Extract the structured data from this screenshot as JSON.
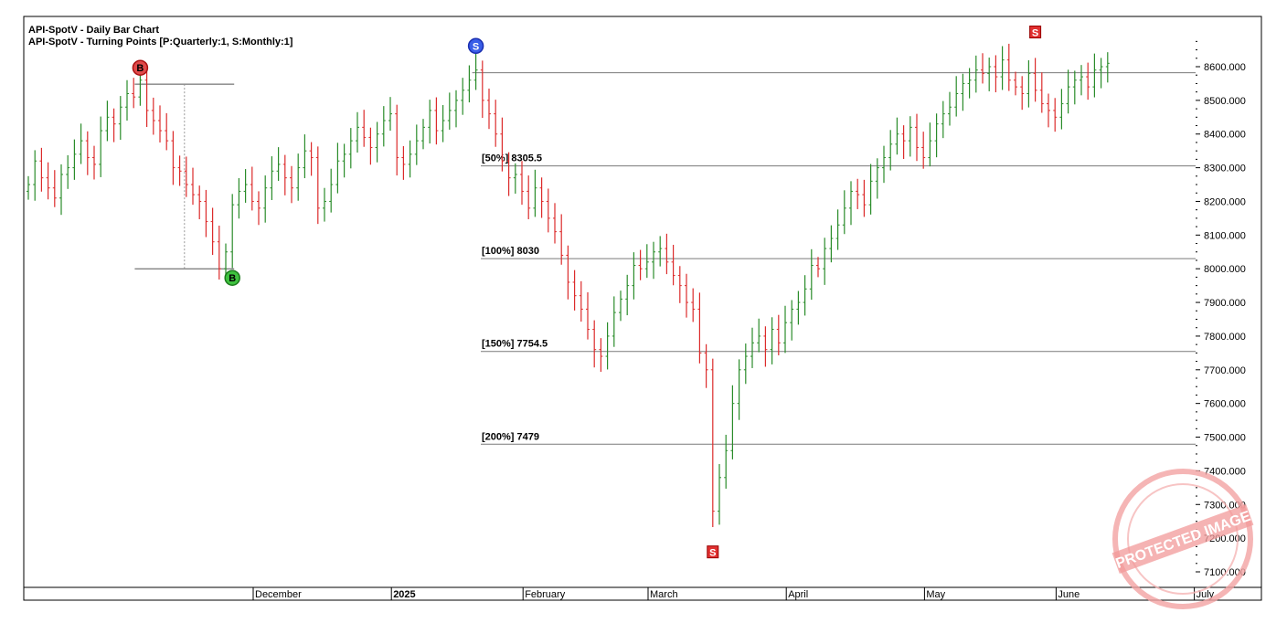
{
  "chart_data": {
    "type": "bar",
    "subtype": "ohlc",
    "title": "API-SpotV - Daily Bar Chart",
    "subtitle": "API-SpotV - Turning Points [P:Quarterly:1, S:Monthly:1]",
    "ylim": [
      7050,
      8700
    ],
    "yticks": [
      "7100.000",
      "7200.000",
      "7300.000",
      "7400.000",
      "7500.000",
      "7600.000",
      "7700.000",
      "7800.000",
      "7900.000",
      "8000.000",
      "8100.000",
      "8200.000",
      "8300.000",
      "8400.000",
      "8500.000",
      "8600.000"
    ],
    "ytick_values": [
      7100,
      7200,
      7300,
      7400,
      7500,
      7600,
      7700,
      7800,
      7900,
      8000,
      8100,
      8200,
      8300,
      8400,
      8500,
      8600
    ],
    "xticks": [
      {
        "label": "December",
        "bold": false,
        "bar": 35
      },
      {
        "label": "2025",
        "bold": true,
        "bar": 56
      },
      {
        "label": "February",
        "bold": false,
        "bar": 76
      },
      {
        "label": "March",
        "bold": false,
        "bar": 95
      },
      {
        "label": "April",
        "bold": false,
        "bar": 116
      },
      {
        "label": "May",
        "bold": false,
        "bar": 137
      },
      {
        "label": "June",
        "bold": false,
        "bar": 157
      },
      {
        "label": "July",
        "bold": false,
        "bar": 178
      }
    ],
    "levels": [
      {
        "label": "[50%] 8305.5",
        "value": 8305.5
      },
      {
        "label": "[100%] 8030",
        "value": 8030
      },
      {
        "label": "[150%] 7754.5",
        "value": 7754.5
      },
      {
        "label": "[200%] 7479",
        "value": 7479
      }
    ],
    "top_line": {
      "value": 8582
    },
    "range_box": {
      "high": 8548,
      "low": 8000,
      "start_bar": 17,
      "end_bar": 31
    },
    "turning_points": [
      {
        "text": "B",
        "bar": 31,
        "value": 8000,
        "pos": "below",
        "style": "circle-green"
      },
      {
        "text": "B",
        "bar": 17,
        "value": 8575,
        "pos": "above",
        "style": "circle-red"
      },
      {
        "text": "S",
        "bar": 68,
        "value": 8640,
        "pos": "above",
        "style": "circle-blue"
      },
      {
        "text": "S",
        "bar": 104,
        "value": 7185,
        "pos": "below",
        "style": "square-red"
      },
      {
        "text": "S",
        "bar": 153,
        "value": 8680,
        "pos": "above",
        "style": "square-red"
      }
    ],
    "bars_close": [
      8250,
      8320,
      8270,
      8240,
      8210,
      8280,
      8300,
      8340,
      8380,
      8330,
      8310,
      8410,
      8450,
      8430,
      8480,
      8520,
      8510,
      8560,
      8470,
      8440,
      8410,
      8380,
      8300,
      8290,
      8250,
      8220,
      8200,
      8140,
      8080,
      8000,
      8050,
      8190,
      8230,
      8250,
      8200,
      8180,
      8240,
      8290,
      8310,
      8270,
      8240,
      8300,
      8350,
      8330,
      8180,
      8200,
      8250,
      8320,
      8340,
      8380,
      8420,
      8390,
      8360,
      8400,
      8440,
      8460,
      8330,
      8310,
      8340,
      8380,
      8420,
      8470,
      8410,
      8440,
      8470,
      8500,
      8530,
      8560,
      8590,
      8500,
      8460,
      8400,
      8320,
      8270,
      8280,
      8230,
      8180,
      8240,
      8200,
      8150,
      8110,
      8040,
      7960,
      7920,
      7880,
      7820,
      7760,
      7740,
      7800,
      7870,
      7910,
      7950,
      8010,
      8000,
      8020,
      8050,
      8060,
      8020,
      7980,
      7950,
      7900,
      7880,
      7750,
      7700,
      7280,
      7380,
      7460,
      7600,
      7700,
      7740,
      7780,
      7800,
      7760,
      7820,
      7780,
      7840,
      7880,
      7900,
      7940,
      8010,
      8000,
      8060,
      8090,
      8130,
      8180,
      8230,
      8220,
      8190,
      8260,
      8300,
      8330,
      8370,
      8400,
      8380,
      8420,
      8360,
      8330,
      8380,
      8430,
      8460,
      8480,
      8520,
      8550,
      8560,
      8590,
      8580,
      8600,
      8570,
      8620,
      8560,
      8540,
      8520,
      8580,
      8530,
      8490,
      8470,
      8450,
      8490,
      8540,
      8560,
      8570,
      8540,
      8590,
      8600,
      8610
    ],
    "watermark": "PROTECTED IMAGE"
  }
}
